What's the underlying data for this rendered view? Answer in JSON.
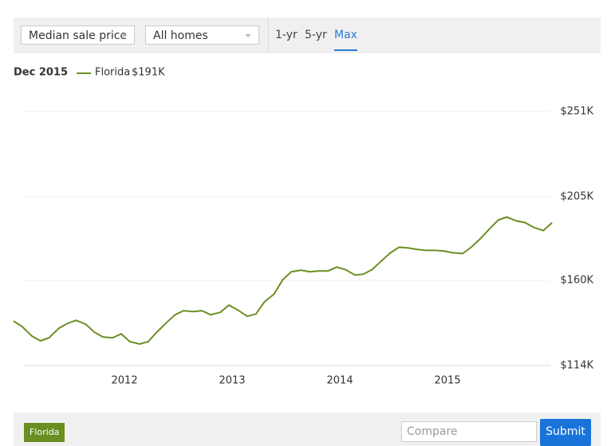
{
  "controls": {
    "metric": "Median sale price",
    "home_type": "All homes",
    "ranges": [
      "1-yr",
      "5-yr",
      "Max"
    ],
    "selected_range": 2,
    "compare_placeholder": "Compare",
    "submit": "Submit"
  },
  "chart_data": {
    "type": "line",
    "legend_date": "Dec 2015",
    "x": [
      2010.97,
      2011.05,
      2011.14,
      2011.22,
      2011.3,
      2011.39,
      2011.47,
      2011.55,
      2011.64,
      2011.72,
      2011.8,
      2011.89,
      2011.97,
      2012.05,
      2012.14,
      2012.22,
      2012.3,
      2012.39,
      2012.47,
      2012.55,
      2012.64,
      2012.72,
      2012.8,
      2012.89,
      2012.97,
      2013.05,
      2013.14,
      2013.22,
      2013.3,
      2013.39,
      2013.47,
      2013.55,
      2013.64,
      2013.72,
      2013.8,
      2013.89,
      2013.97,
      2014.05,
      2014.14,
      2014.22,
      2014.3,
      2014.39,
      2014.47,
      2014.55,
      2014.64,
      2014.72,
      2014.8,
      2014.89,
      2014.97,
      2015.05,
      2015.14,
      2015.22,
      2015.3,
      2015.39,
      2015.47,
      2015.55,
      2015.64,
      2015.72,
      2015.8,
      2015.89,
      2015.97
    ],
    "series": [
      {
        "name": "Florida",
        "color": "#6b8e23",
        "current": {
          "value": 191,
          "label": "$191K"
        },
        "values": [
          138,
          135,
          129.9,
          127.3,
          129,
          134.1,
          136.7,
          138.4,
          136.3,
          132,
          129.4,
          129,
          131.1,
          126.9,
          125.6,
          126.9,
          132,
          137.1,
          141.4,
          143.6,
          143.1,
          143.6,
          141.4,
          142.7,
          146.6,
          144,
          140.6,
          141.8,
          148.3,
          152.6,
          160.3,
          164.6,
          165.4,
          164.6,
          165,
          165,
          167.1,
          165.8,
          162.8,
          163.3,
          165.8,
          170.6,
          174.8,
          177.8,
          177.4,
          176.6,
          176.1,
          176.1,
          175.7,
          174.8,
          174.4,
          177.8,
          182.1,
          187.7,
          192.4,
          194.1,
          192,
          191.1,
          188.5,
          186.8,
          191
        ]
      }
    ],
    "xlim": [
      2010.97,
      2015.97
    ],
    "xticks": [
      2012,
      2013,
      2014,
      2015
    ],
    "ylim": [
      114,
      251
    ],
    "yticks": [
      {
        "value": 114,
        "label": "$114K"
      },
      {
        "value": 160,
        "label": "$160K"
      },
      {
        "value": 205,
        "label": "$205K"
      },
      {
        "value": 251,
        "label": "$251K"
      }
    ],
    "grid": true
  }
}
